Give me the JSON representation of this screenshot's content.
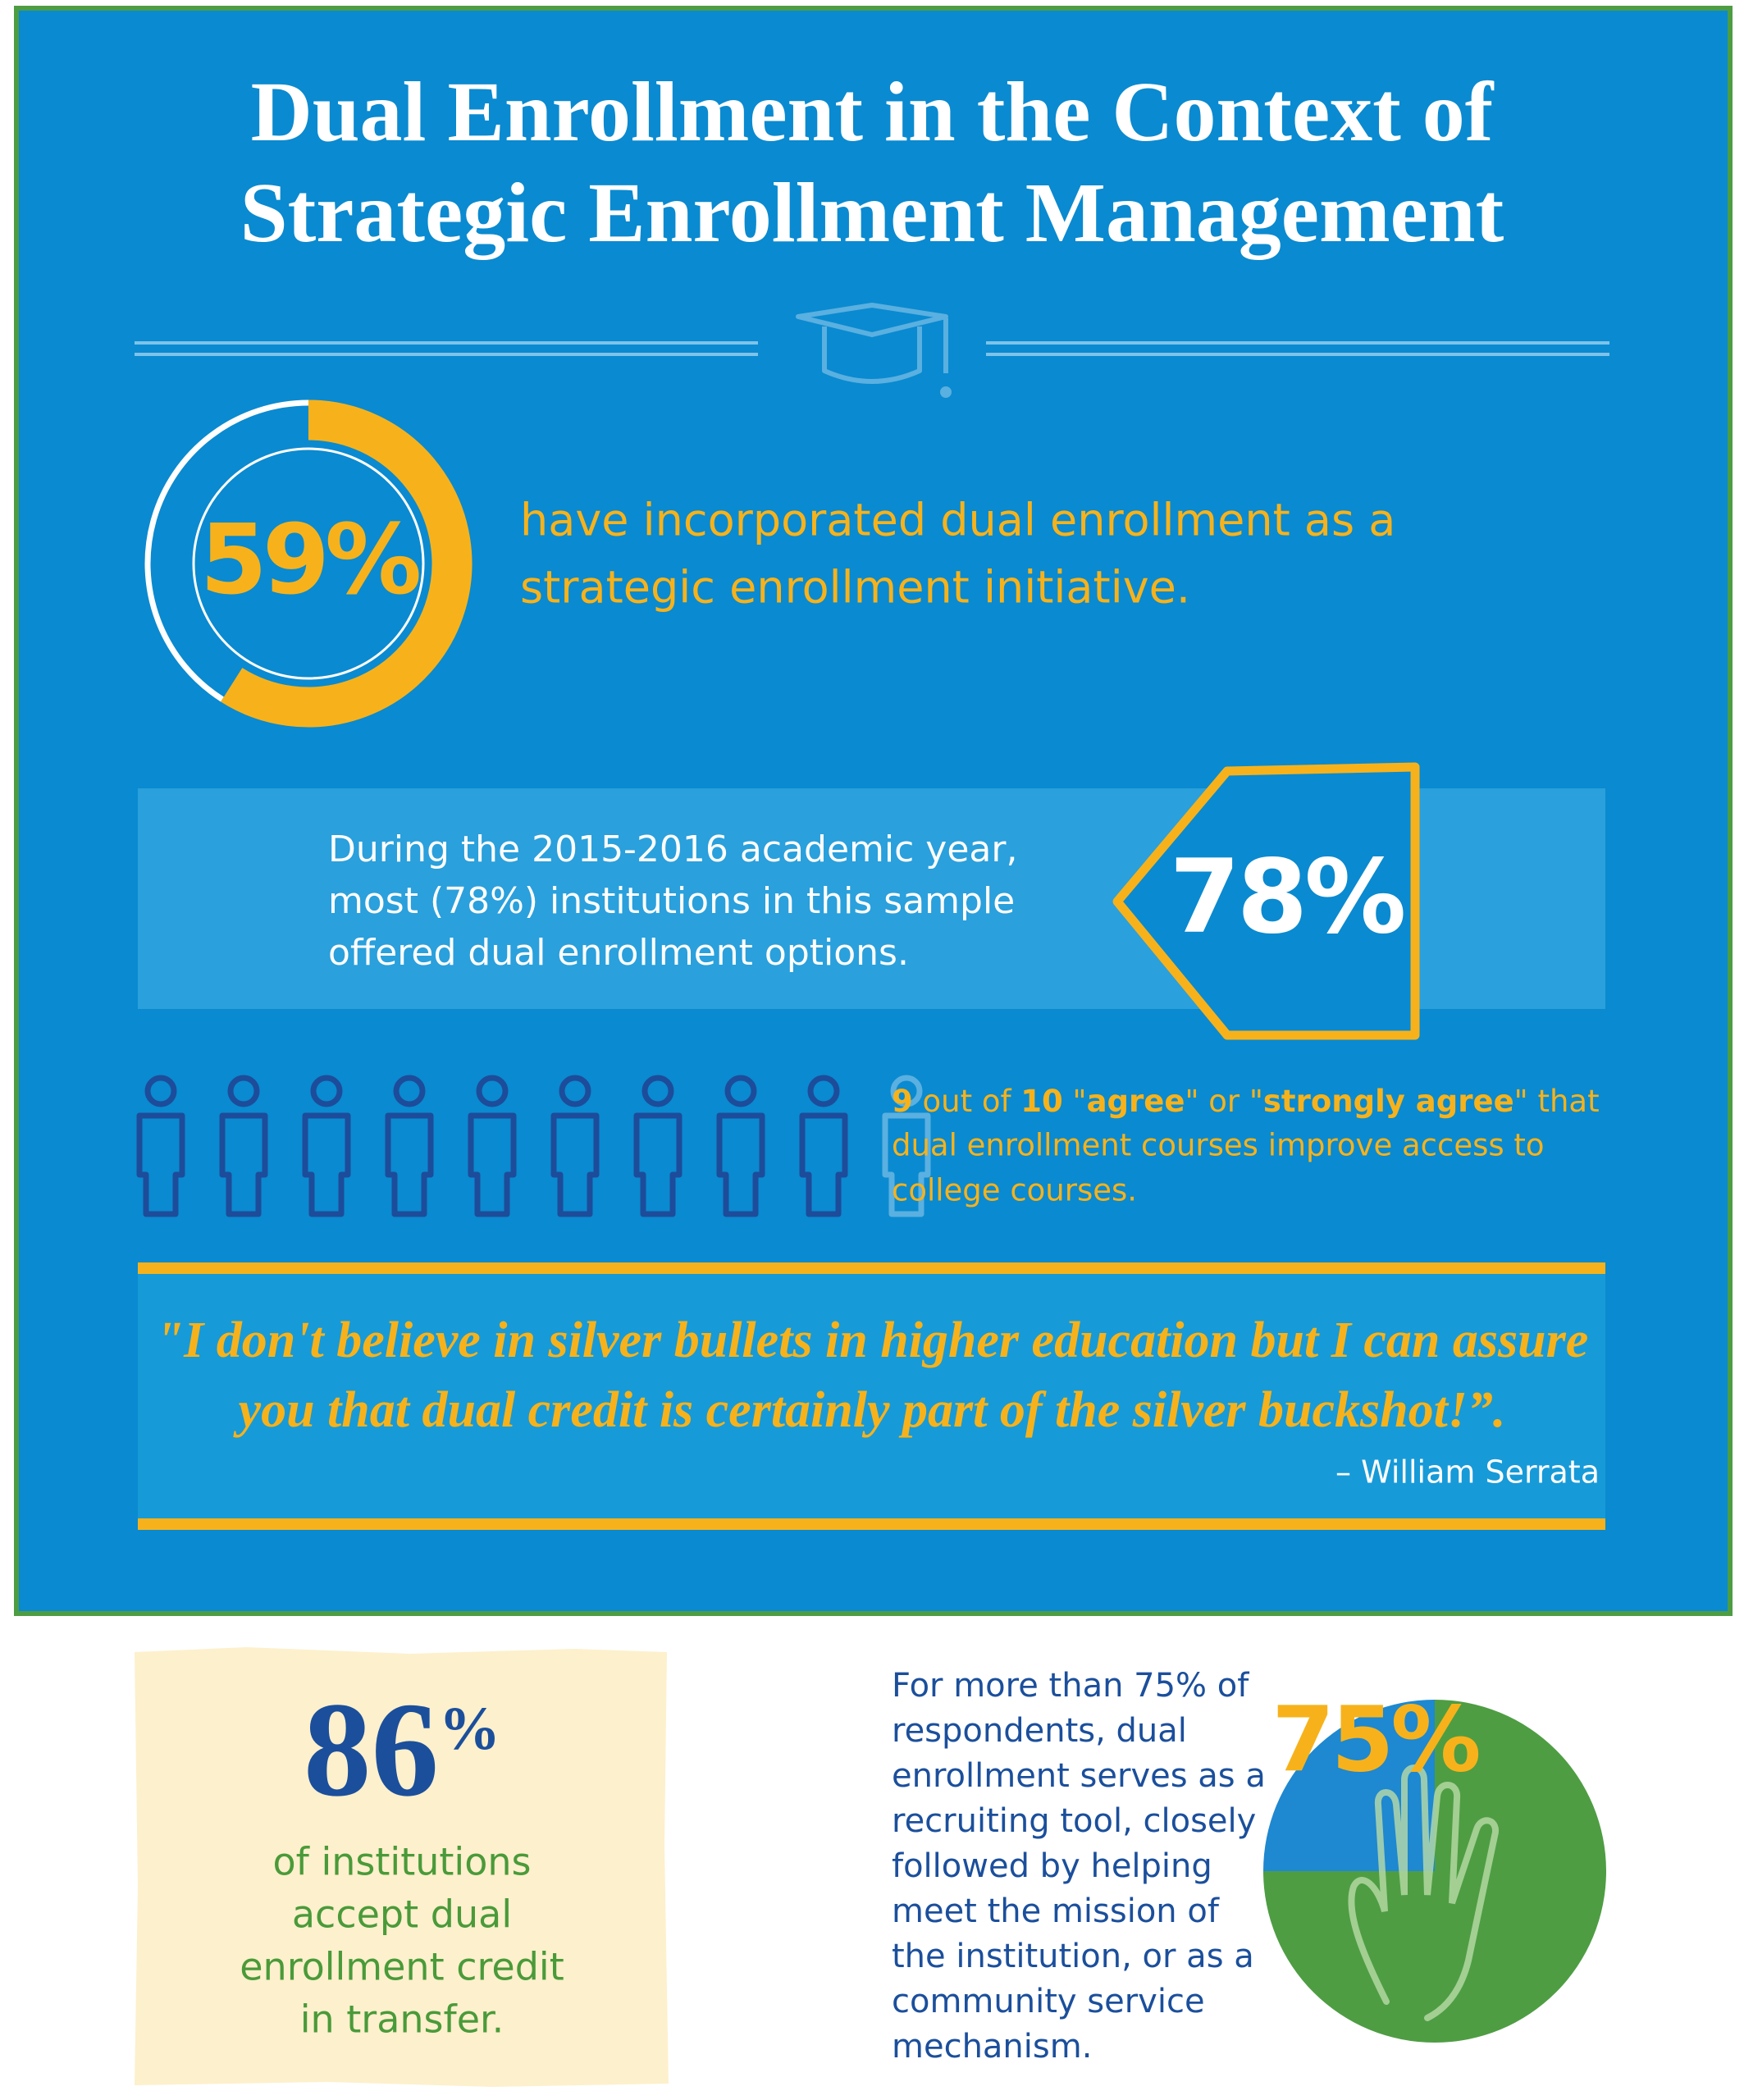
{
  "title": {
    "lines": [
      "Dual Enrollment in the Context of",
      "Strategic Enrollment Management"
    ]
  },
  "initiative": {
    "value": 59,
    "label": "59%",
    "lines": [
      "have incorporated dual enrollment as a",
      "strategic enrollment initiative."
    ]
  },
  "offered": {
    "value": 78,
    "label": "78%",
    "lines": [
      "During the 2015-2016 academic year,",
      "most  (78%) institutions in this sample",
      "offered dual enrollment options."
    ]
  },
  "access": {
    "agree": 9,
    "total": 10,
    "line1": [
      {
        "text": " out of ",
        "bold": false
      },
      {
        "text": " \"",
        "bold": false
      },
      {
        "text": "agree",
        "bold": true
      },
      {
        "text": "\" or \"",
        "bold": false
      },
      {
        "text": "strongly agree",
        "bold": true
      },
      {
        "text": "\" that",
        "bold": false
      }
    ],
    "lines": [
      "dual enrollment courses improve access to",
      "college courses."
    ]
  },
  "quote": {
    "lines": [
      "\"I don't believe in silver bullets in higher education but I can assure",
      "you that dual credit is certainly part of the silver buckshot!”."
    ],
    "attribution": "– William Serrata"
  },
  "transfer": {
    "value": 86,
    "unit": "%",
    "lines": [
      "of institutions",
      "accept dual",
      "enrollment credit",
      "in transfer."
    ]
  },
  "recruiting": {
    "value": 75,
    "label": "75%",
    "lines": [
      "For more than 75% of",
      "respondents, dual",
      "enrollment serves as a",
      "recruiting tool, closely",
      "followed by helping",
      "meet the mission of",
      "the institution, or as a",
      "community service",
      "mechanism."
    ]
  }
}
